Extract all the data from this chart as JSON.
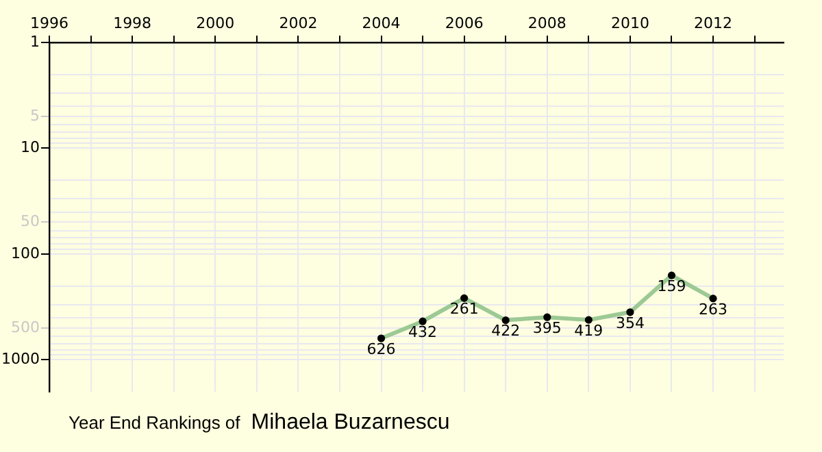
{
  "chart_data": {
    "type": "line",
    "title": "Year End Rankings of",
    "subtitle": "Mihaela Buzarnescu",
    "x": [
      2004,
      2005,
      2006,
      2007,
      2008,
      2009,
      2010,
      2011,
      2012
    ],
    "series": [
      {
        "color": "#9cc994",
        "values": [
          626,
          432,
          261,
          422,
          395,
          419,
          354,
          159,
          263
        ]
      }
    ],
    "xlim": [
      1996,
      2013.7
    ],
    "xticks": [
      1996,
      {
        "value": 1997,
        "label": null
      },
      1998,
      {
        "value": 1999,
        "label": null
      },
      2000,
      {
        "value": 2001,
        "label": null
      },
      2002,
      {
        "value": 2003,
        "label": null
      },
      2004,
      {
        "value": 2005,
        "label": null
      },
      2006,
      {
        "value": 2007,
        "label": null
      },
      2008,
      {
        "value": 2009,
        "label": null
      },
      2010,
      {
        "value": 2011,
        "label": null
      },
      2012,
      {
        "value": 2013,
        "label": null
      }
    ],
    "ylim": [
      2000,
      1
    ],
    "yticks": [
      1,
      {
        "value": 2,
        "label": null
      },
      {
        "value": 3,
        "label": null
      },
      {
        "value": 4,
        "label": null
      },
      5,
      {
        "value": 6,
        "label": null
      },
      {
        "value": 7,
        "label": null
      },
      {
        "value": 8,
        "label": null
      },
      {
        "value": 9,
        "label": null
      },
      10,
      {
        "value": 20,
        "label": null
      },
      {
        "value": 30,
        "label": null
      },
      {
        "value": 40,
        "label": null
      },
      50,
      {
        "value": 60,
        "label": null
      },
      {
        "value": 70,
        "label": null
      },
      {
        "value": 80,
        "label": null
      },
      {
        "value": 90,
        "label": null
      },
      100,
      {
        "value": 200,
        "label": null
      },
      {
        "value": 300,
        "label": null
      },
      {
        "value": 400,
        "label": null
      },
      500,
      {
        "value": 600,
        "label": null
      },
      {
        "value": 700,
        "label": null
      },
      {
        "value": 800,
        "label": null
      },
      {
        "value": 900,
        "label": null
      },
      1000
    ],
    "log": "y",
    "grid": true,
    "marker": "circle",
    "line_style": "solid",
    "data_labels": true,
    "legend": false
  }
}
